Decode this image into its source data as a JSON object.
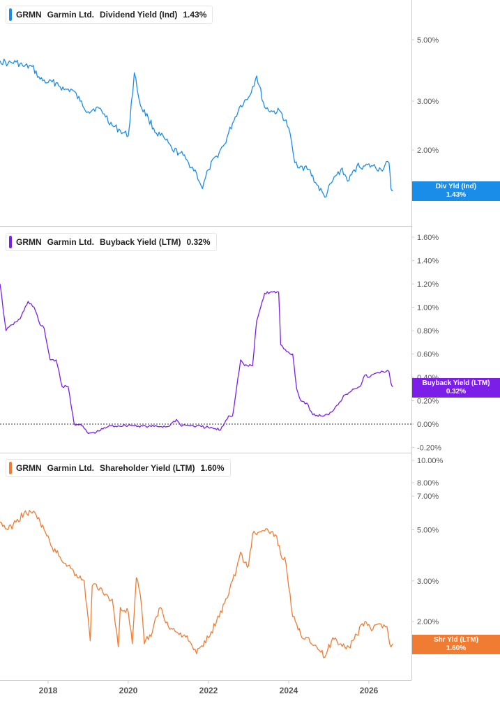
{
  "colors": {
    "dividend": "#1a8de9",
    "buyback": "#7b1fe8",
    "shareholder": "#f07c33",
    "axis": "#cccccc",
    "tick_text": "#555555"
  },
  "x_axis": {
    "ticks": [
      "2018",
      "2020",
      "2022",
      "2024",
      "2026"
    ]
  },
  "panels": [
    {
      "id": "dividend",
      "ticker": "GRMN",
      "company": "Garmin Ltd.",
      "metric": "Dividend Yield (Ind)",
      "value": "1.43%",
      "tag_line1": "Div Yld (Ind)",
      "tag_line2": "1.43%",
      "y_ticks": [
        "5.00%",
        "3.00%",
        "2.00%"
      ]
    },
    {
      "id": "buyback",
      "ticker": "GRMN",
      "company": "Garmin Ltd.",
      "metric": "Buyback Yield (LTM)",
      "value": "0.32%",
      "tag_line1": "Buyback Yield (LTM)",
      "tag_line2": "0.32%",
      "y_ticks": [
        "1.60%",
        "1.40%",
        "1.20%",
        "1.00%",
        "0.80%",
        "0.60%",
        "0.40%",
        "0.20%",
        "0.00%",
        "-0.20%"
      ]
    },
    {
      "id": "shareholder",
      "ticker": "GRMN",
      "company": "Garmin Ltd.",
      "metric": "Shareholder Yield (LTM)",
      "value": "1.60%",
      "tag_line1": "Shr Yld (LTM)",
      "tag_line2": "1.60%",
      "y_ticks": [
        "10.00%",
        "8.00%",
        "7.00%",
        "5.00%",
        "3.00%",
        "2.00%"
      ]
    }
  ],
  "chart_data": [
    {
      "type": "line",
      "scale": "log",
      "series": [
        {
          "name": "Dividend Yield (Ind)",
          "x": [
            2016.8,
            2017.0,
            2017.2,
            2017.4,
            2017.6,
            2017.8,
            2018.0,
            2018.2,
            2018.4,
            2018.6,
            2018.8,
            2019.0,
            2019.2,
            2019.4,
            2019.6,
            2019.8,
            2020.0,
            2020.15,
            2020.3,
            2020.5,
            2020.7,
            2020.9,
            2021.1,
            2021.3,
            2021.5,
            2021.7,
            2021.85,
            2022.0,
            2022.2,
            2022.4,
            2022.6,
            2022.8,
            2023.0,
            2023.2,
            2023.4,
            2023.6,
            2023.8,
            2024.0,
            2024.15,
            2024.3,
            2024.5,
            2024.7,
            2024.9,
            2025.1,
            2025.3,
            2025.5,
            2025.7,
            2025.9,
            2026.1,
            2026.3,
            2026.5,
            2026.55,
            2026.6
          ],
          "y": [
            4.2,
            4.1,
            4.15,
            4.0,
            4.0,
            3.6,
            3.5,
            3.5,
            3.3,
            3.3,
            3.0,
            2.75,
            2.85,
            2.7,
            2.45,
            2.35,
            2.25,
            3.8,
            2.9,
            2.6,
            2.3,
            2.2,
            2.0,
            1.95,
            1.8,
            1.65,
            1.45,
            1.7,
            1.9,
            2.1,
            2.5,
            2.9,
            3.1,
            3.7,
            2.85,
            2.75,
            2.75,
            2.4,
            1.8,
            1.75,
            1.7,
            1.5,
            1.35,
            1.55,
            1.7,
            1.55,
            1.75,
            1.75,
            1.75,
            1.7,
            1.8,
            1.45,
            1.43
          ]
        }
      ]
    },
    {
      "type": "line",
      "series": [
        {
          "name": "Buyback Yield (LTM)",
          "x": [
            2016.8,
            2016.95,
            2017.1,
            2017.3,
            2017.5,
            2017.65,
            2017.8,
            2017.9,
            2018.05,
            2018.2,
            2018.35,
            2018.5,
            2018.65,
            2018.8,
            2019.0,
            2019.2,
            2019.5,
            2020.0,
            2020.5,
            2021.0,
            2021.2,
            2021.3,
            2021.5,
            2022.0,
            2022.3,
            2022.5,
            2022.6,
            2022.8,
            2022.9,
            2023.1,
            2023.2,
            2023.4,
            2023.6,
            2023.75,
            2023.8,
            2023.95,
            2024.1,
            2024.2,
            2024.3,
            2024.45,
            2024.6,
            2024.8,
            2025.0,
            2025.2,
            2025.4,
            2025.5,
            2025.6,
            2025.8,
            2025.9,
            2026.0,
            2026.2,
            2026.35,
            2026.5,
            2026.55,
            2026.6
          ],
          "y": [
            1.2,
            0.8,
            0.85,
            0.9,
            1.05,
            1.0,
            0.85,
            0.82,
            0.55,
            0.55,
            0.32,
            0.32,
            0.0,
            0.0,
            -0.08,
            -0.07,
            -0.02,
            -0.01,
            -0.02,
            -0.02,
            0.04,
            -0.01,
            -0.01,
            -0.03,
            -0.05,
            0.07,
            0.07,
            0.55,
            0.5,
            0.5,
            0.88,
            1.12,
            1.13,
            1.13,
            0.68,
            0.62,
            0.6,
            0.3,
            0.2,
            0.18,
            0.08,
            0.07,
            0.08,
            0.16,
            0.25,
            0.27,
            0.3,
            0.33,
            0.42,
            0.4,
            0.44,
            0.45,
            0.45,
            0.35,
            0.32
          ]
        }
      ]
    },
    {
      "type": "line",
      "scale": "log",
      "series": [
        {
          "name": "Shareholder Yield (LTM)",
          "x": [
            2016.8,
            2017.0,
            2017.2,
            2017.4,
            2017.6,
            2017.7,
            2017.8,
            2017.9,
            2018.1,
            2018.3,
            2018.5,
            2018.7,
            2018.9,
            2019.05,
            2019.1,
            2019.2,
            2019.4,
            2019.6,
            2019.75,
            2019.8,
            2020.0,
            2020.1,
            2020.2,
            2020.3,
            2020.4,
            2020.6,
            2020.7,
            2020.8,
            2021.0,
            2021.2,
            2021.4,
            2021.6,
            2021.7,
            2021.8,
            2022.0,
            2022.2,
            2022.4,
            2022.6,
            2022.7,
            2022.8,
            2022.9,
            2023.0,
            2023.1,
            2023.3,
            2023.5,
            2023.7,
            2023.8,
            2023.9,
            2024.1,
            2024.2,
            2024.3,
            2024.5,
            2024.7,
            2024.9,
            2025.1,
            2025.3,
            2025.5,
            2025.7,
            2025.9,
            2026.1,
            2026.3,
            2026.45,
            2026.55,
            2026.6
          ],
          "y": [
            5.4,
            5.0,
            5.4,
            5.9,
            5.9,
            5.8,
            5.4,
            5.0,
            4.2,
            3.8,
            3.5,
            3.2,
            3.0,
            1.65,
            2.85,
            2.9,
            2.6,
            2.5,
            1.55,
            2.3,
            2.2,
            1.6,
            3.1,
            2.6,
            1.6,
            1.8,
            2.1,
            2.3,
            1.9,
            1.8,
            1.75,
            1.55,
            1.45,
            1.55,
            1.7,
            2.0,
            2.4,
            3.0,
            3.4,
            4.0,
            3.6,
            3.5,
            4.8,
            4.9,
            4.9,
            4.7,
            3.9,
            3.8,
            2.1,
            1.95,
            1.75,
            1.7,
            1.55,
            1.4,
            1.7,
            1.6,
            1.55,
            1.75,
            2.0,
            1.85,
            1.95,
            1.9,
            1.55,
            1.6
          ]
        }
      ]
    }
  ]
}
